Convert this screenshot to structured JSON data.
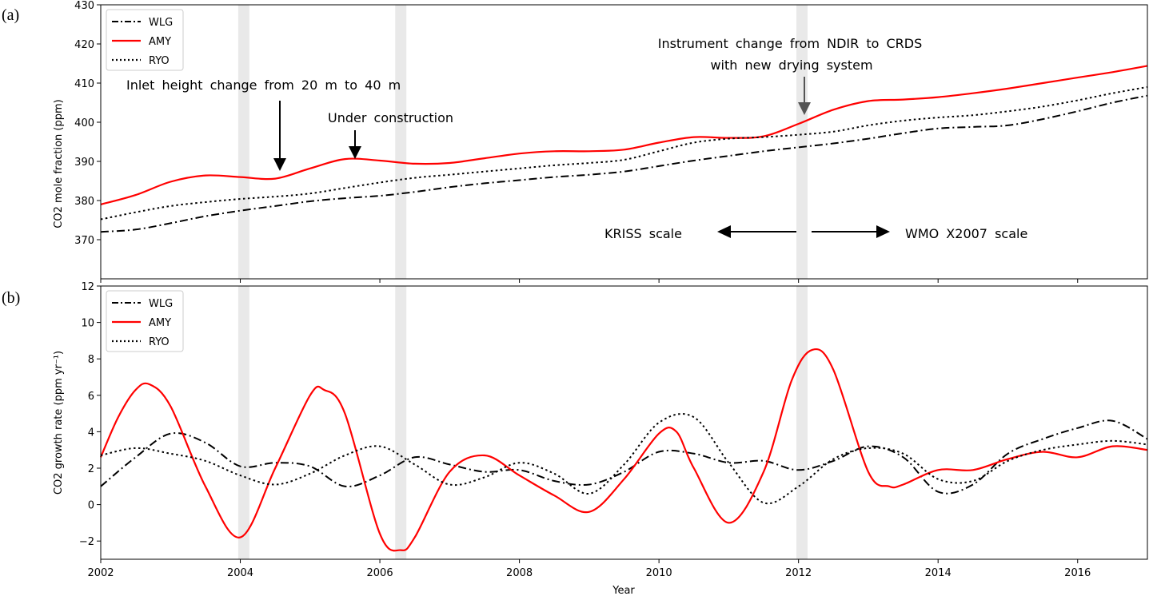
{
  "chart_data": [
    {
      "panel": "(a)",
      "type": "line",
      "ylabel": "CO2 mole fraction  (ppm)",
      "xlim": [
        2002,
        2017
      ],
      "ylim": [
        360,
        430
      ],
      "yticks": [
        370,
        380,
        390,
        400,
        410,
        420,
        430
      ],
      "xticks": [
        2002,
        2004,
        2006,
        2008,
        2010,
        2012,
        2014,
        2016
      ],
      "shaded_bands_year": [
        [
          2003.97,
          2004.13
        ],
        [
          2006.22,
          2006.38
        ],
        [
          2011.97,
          2012.13
        ]
      ],
      "legend_position": "upper-left",
      "series": [
        {
          "name": "WLG",
          "color": "#000000",
          "dash": "dashdot",
          "x": [
            2002,
            2002.5,
            2003,
            2003.5,
            2004,
            2004.5,
            2005,
            2005.5,
            2006,
            2006.5,
            2007,
            2007.5,
            2008,
            2008.5,
            2009,
            2009.5,
            2010,
            2010.5,
            2011,
            2011.5,
            2012,
            2012.5,
            2013,
            2013.5,
            2014,
            2014.5,
            2015,
            2015.5,
            2016,
            2016.5,
            2017
          ],
          "y": [
            372.0,
            372.6,
            374.2,
            376.0,
            377.4,
            378.6,
            379.8,
            380.6,
            381.2,
            382.2,
            383.4,
            384.4,
            385.2,
            386.0,
            386.6,
            387.4,
            388.8,
            390.2,
            391.4,
            392.6,
            393.6,
            394.6,
            395.8,
            397.2,
            398.4,
            398.8,
            399.2,
            400.8,
            402.8,
            405.0,
            406.8
          ]
        },
        {
          "name": "AMY",
          "color": "#ff0000",
          "dash": "solid",
          "x": [
            2002,
            2002.5,
            2003,
            2003.5,
            2004,
            2004.5,
            2005,
            2005.5,
            2006,
            2006.5,
            2007,
            2007.5,
            2008,
            2008.5,
            2009,
            2009.5,
            2010,
            2010.5,
            2011,
            2011.5,
            2012,
            2012.5,
            2013,
            2013.5,
            2014,
            2014.5,
            2015,
            2015.5,
            2016,
            2016.5,
            2017
          ],
          "y": [
            379.0,
            381.4,
            384.8,
            386.4,
            386.0,
            385.6,
            388.2,
            390.6,
            390.2,
            389.4,
            389.6,
            390.8,
            392.0,
            392.6,
            392.6,
            393.0,
            394.8,
            396.2,
            396.0,
            396.4,
            399.6,
            403.2,
            405.4,
            405.8,
            406.4,
            407.4,
            408.6,
            410.0,
            411.4,
            412.8,
            414.4
          ]
        },
        {
          "name": "RYO",
          "color": "#000000",
          "dash": "dotted",
          "x": [
            2002,
            2002.5,
            2003,
            2003.5,
            2004,
            2004.5,
            2005,
            2005.5,
            2006,
            2006.5,
            2007,
            2007.5,
            2008,
            2008.5,
            2009,
            2009.5,
            2010,
            2010.5,
            2011,
            2011.5,
            2012,
            2012.5,
            2013,
            2013.5,
            2014,
            2014.5,
            2015,
            2015.5,
            2016,
            2016.5,
            2017
          ],
          "y": [
            375.2,
            377.0,
            378.6,
            379.6,
            380.4,
            381.0,
            381.8,
            383.2,
            384.6,
            385.8,
            386.6,
            387.4,
            388.2,
            389.0,
            389.6,
            390.4,
            392.6,
            394.8,
            395.8,
            396.2,
            396.8,
            397.6,
            399.2,
            400.4,
            401.2,
            401.8,
            402.8,
            404.0,
            405.6,
            407.4,
            409.0
          ]
        }
      ],
      "annotations": {
        "inlet": "Inlet height  change  from  20  m  to  40  m",
        "construction": "Under  construction",
        "instrument_line1": "Instrument  change  from  NDIR  to  CRDS",
        "instrument_line2": "with  new  drying  system",
        "kriss": "KRISS  scale",
        "wmo": "WMO  X2007  scale"
      }
    },
    {
      "panel": "(b)",
      "type": "line",
      "xlabel": "Year",
      "ylabel": "CO2 growth rate (ppm yr⁻¹)",
      "xlim": [
        2002,
        2017
      ],
      "ylim": [
        -3,
        12
      ],
      "yticks": [
        -2,
        0,
        2,
        4,
        6,
        8,
        10,
        12
      ],
      "ytick_labels": [
        "−2",
        "0",
        "2",
        "4",
        "6",
        "8",
        "10",
        "12"
      ],
      "xticks": [
        2002,
        2004,
        2006,
        2008,
        2010,
        2012,
        2014,
        2016
      ],
      "shaded_bands_year": [
        [
          2003.97,
          2004.13
        ],
        [
          2006.22,
          2006.38
        ],
        [
          2011.97,
          2012.13
        ]
      ],
      "legend_position": "upper-left",
      "series": [
        {
          "name": "WLG",
          "color": "#000000",
          "dash": "dashdot",
          "x": [
            2002,
            2002.5,
            2003,
            2003.5,
            2004,
            2004.5,
            2005,
            2005.5,
            2006,
            2006.5,
            2007,
            2007.5,
            2008,
            2008.5,
            2009,
            2009.5,
            2010,
            2010.5,
            2011,
            2011.5,
            2012,
            2012.5,
            2013,
            2013.5,
            2014,
            2014.5,
            2015,
            2015.5,
            2016,
            2016.5,
            2017
          ],
          "y": [
            1.0,
            2.6,
            3.9,
            3.4,
            2.1,
            2.3,
            2.1,
            1.0,
            1.6,
            2.6,
            2.2,
            1.8,
            1.9,
            1.3,
            1.1,
            1.8,
            2.9,
            2.8,
            2.3,
            2.4,
            1.9,
            2.4,
            3.2,
            2.6,
            0.7,
            1.1,
            2.8,
            3.6,
            4.2,
            4.6,
            3.6
          ]
        },
        {
          "name": "AMY",
          "color": "#ff0000",
          "dash": "solid",
          "x": [
            2002,
            2002.25,
            2002.5,
            2002.7,
            2003,
            2003.5,
            2004,
            2004.5,
            2005,
            2005.2,
            2005.5,
            2006,
            2006.3,
            2006.5,
            2007,
            2007.5,
            2008,
            2008.5,
            2009,
            2009.5,
            2010,
            2010.25,
            2010.5,
            2011,
            2011.5,
            2011.9,
            2012.2,
            2012.5,
            2013,
            2013.3,
            2013.5,
            2014,
            2014.5,
            2015,
            2015.5,
            2016,
            2016.5,
            2017
          ],
          "y": [
            2.6,
            4.8,
            6.3,
            6.6,
            5.4,
            1.0,
            -1.8,
            2.0,
            6.0,
            6.3,
            5.0,
            -1.6,
            -2.5,
            -1.8,
            1.8,
            2.7,
            1.6,
            0.5,
            -0.4,
            1.4,
            3.9,
            4.0,
            2.0,
            -1.0,
            1.8,
            6.8,
            8.5,
            7.4,
            1.8,
            1.0,
            1.1,
            1.9,
            1.9,
            2.5,
            2.9,
            2.6,
            3.2,
            3.0
          ]
        },
        {
          "name": "RYO",
          "color": "#000000",
          "dash": "dotted",
          "x": [
            2002,
            2002.5,
            2003,
            2003.5,
            2004,
            2004.5,
            2005,
            2005.5,
            2006,
            2006.5,
            2007,
            2007.5,
            2008,
            2008.5,
            2009,
            2009.5,
            2010,
            2010.5,
            2011,
            2011.5,
            2012,
            2012.5,
            2013,
            2013.5,
            2014,
            2014.5,
            2015,
            2015.5,
            2016,
            2016.5,
            2017
          ],
          "y": [
            2.7,
            3.1,
            2.8,
            2.4,
            1.6,
            1.1,
            1.7,
            2.7,
            3.2,
            2.2,
            1.1,
            1.5,
            2.3,
            1.7,
            0.6,
            2.2,
            4.5,
            4.8,
            2.3,
            0.1,
            1.0,
            2.5,
            3.1,
            2.8,
            1.4,
            1.3,
            2.4,
            3.0,
            3.3,
            3.5,
            3.3
          ]
        }
      ]
    }
  ]
}
